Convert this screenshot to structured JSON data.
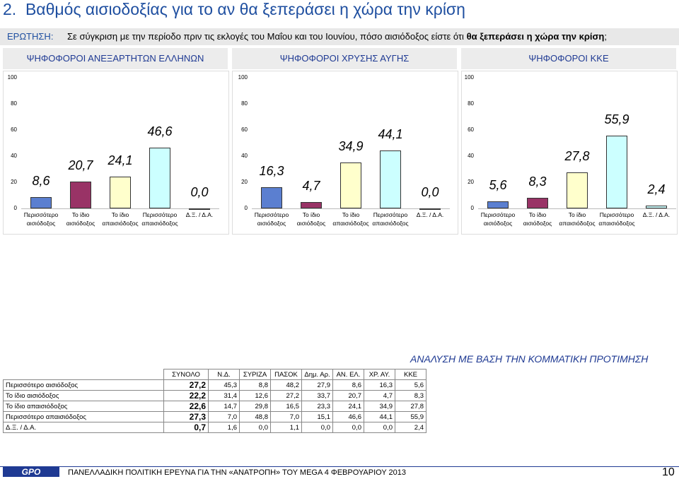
{
  "header": {
    "number": "2.",
    "title": "Βαθμός αισιοδοξίας για το αν θα ξεπεράσει η χώρα την κρίση"
  },
  "question": {
    "label": "ΕΡΩΤΗΣΗ:",
    "text": "Σε σύγκριση με την περίοδο πριν τις εκλογές του Μαΐου και του Ιουνίου, πόσο αισιόδοξος είστε ότι ",
    "bold": "θα ξεπεράσει η χώρα την κρίση",
    "end": ";"
  },
  "chart_data": [
    {
      "type": "bar",
      "title": "ΨΗΦΟΦΟΡΟΙ ΑΝΕΞΑΡΤΗΤΩΝ ΕΛΛΗΝΩΝ",
      "categories": [
        "Περισσότερο αισιόδοξος",
        "Το ίδιο αισιόδοξος",
        "Το ίδιο απαισιόδοξος",
        "Περισσότερο απαισιόδοξος",
        "Δ.Ξ. / Δ.Α."
      ],
      "values": [
        8.6,
        20.7,
        24.1,
        46.6,
        0.0
      ],
      "value_labels": [
        "8,6",
        "20,7",
        "24,1",
        "46,6",
        "0,0"
      ],
      "colors": [
        "#5b7fd0",
        "#993366",
        "#ffffcc",
        "#ccffff",
        "#ccffff"
      ],
      "ylim": [
        0,
        100
      ],
      "yticks": [
        0,
        20,
        40,
        60,
        80,
        100
      ]
    },
    {
      "type": "bar",
      "title": "ΨΗΦΟΦΟΡΟΙ ΧΡΥΣΗΣ ΑΥΓΗΣ",
      "categories": [
        "Περισσότερο αισιόδοξος",
        "Το ίδιο αισιόδοξος",
        "Το ίδιο απαισιόδοξος",
        "Περισσότερο απαισιόδοξος",
        "Δ.Ξ. / Δ.Α."
      ],
      "values": [
        16.3,
        4.7,
        34.9,
        44.1,
        0.0
      ],
      "value_labels": [
        "16,3",
        "4,7",
        "34,9",
        "44,1",
        "0,0"
      ],
      "colors": [
        "#5b7fd0",
        "#993366",
        "#ffffcc",
        "#ccffff",
        "#ccffff"
      ],
      "ylim": [
        0,
        100
      ],
      "yticks": [
        0,
        20,
        40,
        60,
        80,
        100
      ]
    },
    {
      "type": "bar",
      "title": "ΨΗΦΟΦΟΡΟΙ ΚΚΕ",
      "categories": [
        "Περισσότερο αισιόδοξος",
        "Το ίδιο αισιόδοξος",
        "Το ίδιο απαισιόδοξος",
        "Περισσότερο απαισιόδοξος",
        "Δ.Ξ. / Δ.Α."
      ],
      "values": [
        5.6,
        8.3,
        27.8,
        55.9,
        2.4
      ],
      "value_labels": [
        "5,6",
        "8,3",
        "27,8",
        "55,9",
        "2,4"
      ],
      "colors": [
        "#5b7fd0",
        "#993366",
        "#ffffcc",
        "#ccffff",
        "#ccffff"
      ],
      "ylim": [
        0,
        100
      ],
      "yticks": [
        0,
        20,
        40,
        60,
        80,
        100
      ]
    }
  ],
  "table": {
    "title": "ΑΝΑΛΥΣΗ ΜΕ ΒΑΣΗ ΤΗΝ ΚΟΜΜΑΤΙΚΗ ΠΡΟΤΙΜΗΣΗ",
    "columns": [
      "ΣΥΝΟΛΟ",
      "Ν.Δ.",
      "ΣΥΡΙΖΑ",
      "ΠΑΣΟΚ",
      "Δημ. Αρ.",
      "ΑΝ. ΕΛ.",
      "ΧΡ. ΑΥ.",
      "ΚΚΕ"
    ],
    "rows": [
      [
        "Περισσότερο αισιόδοξος",
        "27,2",
        "45,3",
        "8,8",
        "48,2",
        "27,9",
        "8,6",
        "16,3",
        "5,6"
      ],
      [
        "Το ίδιο αισιόδοξος",
        "22,2",
        "31,4",
        "12,6",
        "27,2",
        "33,7",
        "20,7",
        "4,7",
        "8,3"
      ],
      [
        "Το ίδιο απαισιόδοξος",
        "22,6",
        "14,7",
        "29,8",
        "16,5",
        "23,3",
        "24,1",
        "34,9",
        "27,8"
      ],
      [
        "Περισσότερο απαισιόδοξος",
        "27,3",
        "7,0",
        "48,8",
        "7,0",
        "15,1",
        "46,6",
        "44,1",
        "55,9"
      ],
      [
        "Δ.Ξ. / Δ.Α.",
        "0,7",
        "1,6",
        "0,0",
        "1,1",
        "0,0",
        "0,0",
        "0,0",
        "2,4"
      ]
    ]
  },
  "footer": {
    "logo": "GPO",
    "text": "ΠΑΝΕΛΛΑΔΙΚΗ ΠΟΛΙΤΙΚΗ ΕΡΕΥΝΑ ΓΙΑ ΤΗΝ «ΑΝΑΤΡΟΠΗ» ΤΟΥ MEGA 4 ΦΕΒΡΟΥΑΡΙΟΥ 2013",
    "page": "10"
  }
}
